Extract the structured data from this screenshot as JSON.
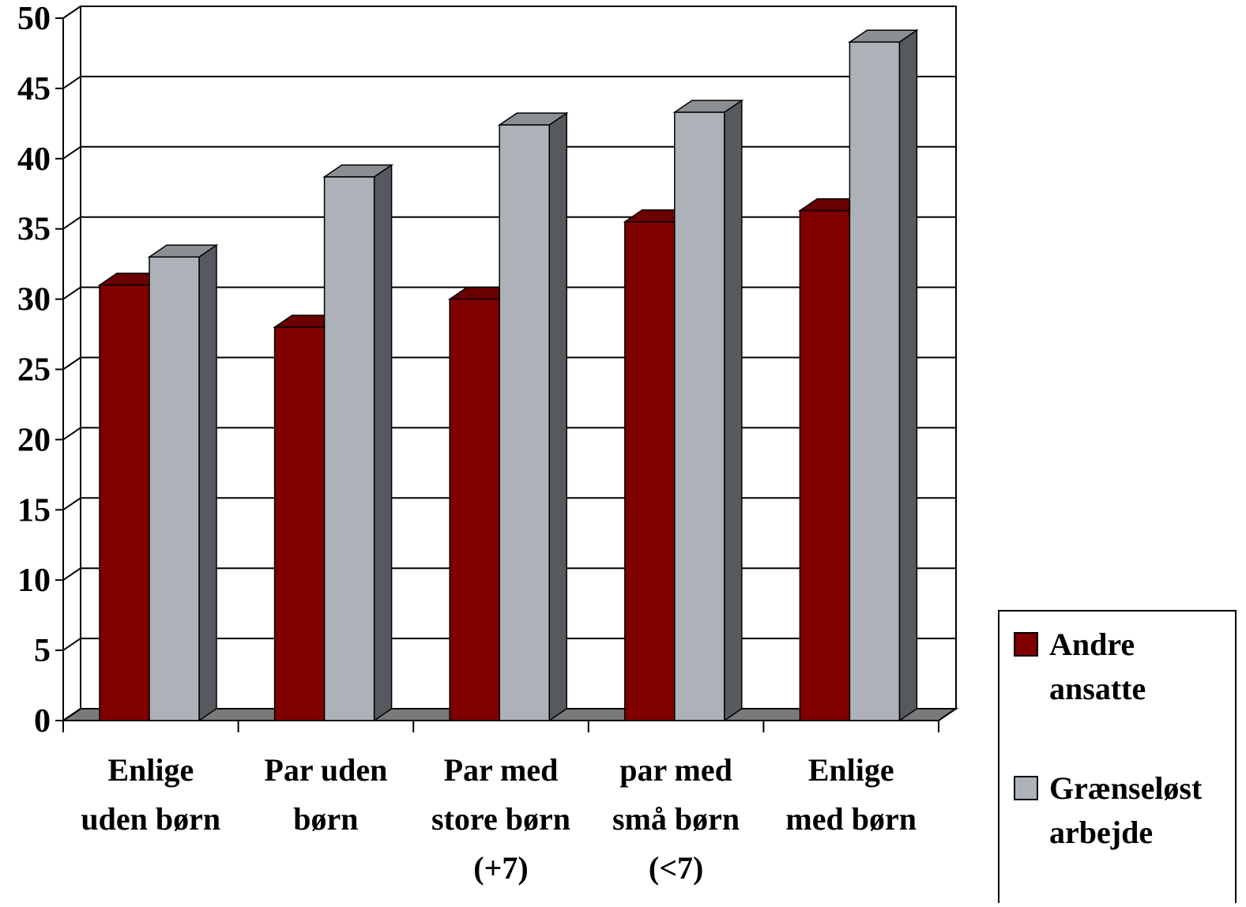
{
  "chart_data": {
    "type": "bar",
    "style": "3d-clustered-columns",
    "title": "",
    "xlabel": "",
    "ylabel": "",
    "ylim": [
      0,
      50
    ],
    "y_ticks": [
      "0",
      "5",
      "10",
      "15",
      "20",
      "25",
      "30",
      "35",
      "40",
      "45",
      "50"
    ],
    "grid": true,
    "legend_position": "bottom-right",
    "categories": [
      [
        "Enlige",
        "uden børn"
      ],
      [
        "Par uden",
        "børn"
      ],
      [
        "Par med",
        "store børn",
        "(+7)"
      ],
      [
        "par med",
        "små børn",
        "(<7)"
      ],
      [
        "Enlige",
        "med børn"
      ]
    ],
    "series": [
      {
        "name": "Andre ansatte",
        "legend_lines": [
          "Andre",
          "ansatte"
        ],
        "color": "#800000",
        "top_color": "#6a0000",
        "side_color": "#4a0000",
        "values": [
          31,
          28,
          30,
          35.5,
          36.3
        ]
      },
      {
        "name": "Grænseløst arbejde",
        "legend_lines": [
          "Grænseløst",
          "arbejde"
        ],
        "color": "#adb2b9",
        "top_color": "#8b8f93",
        "side_color": "#565a5e",
        "values": [
          33,
          38.7,
          42.4,
          43.3,
          48.3
        ]
      }
    ],
    "colors": {
      "floor": "#7a7a7a",
      "wall": "#ffffff",
      "grid": "#000000"
    }
  }
}
